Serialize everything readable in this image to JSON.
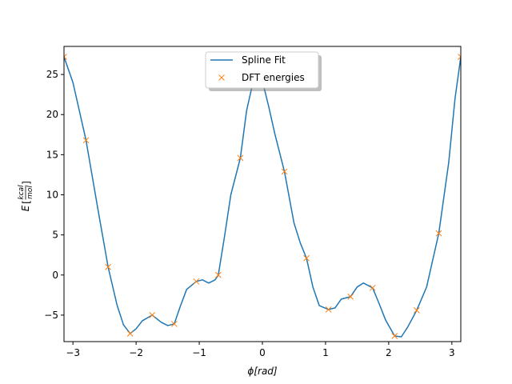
{
  "chart_data": {
    "type": "line",
    "title": "",
    "xlabel": "ϕ[rad]",
    "ylabel": "E[kcal/mol]",
    "ylabel_parts": {
      "symbol": "E",
      "num": "kcal",
      "den": "mol"
    },
    "xlim": [
      -3.1416,
      3.1416
    ],
    "ylim": [
      -8.3,
      28.5
    ],
    "xticks": [
      -3,
      -2,
      -1,
      0,
      1,
      2,
      3
    ],
    "yticks": [
      -5,
      0,
      5,
      10,
      15,
      20,
      25
    ],
    "grid": false,
    "legend_position": "top-center",
    "series": [
      {
        "name": "Spline Fit",
        "kind": "line",
        "color": "#1f77b4",
        "x": [
          -3.1416,
          -3.0,
          -2.793,
          -2.6,
          -2.443,
          -2.3,
          -2.2,
          -2.094,
          -2.0,
          -1.9,
          -1.745,
          -1.6,
          -1.5,
          -1.396,
          -1.3,
          -1.2,
          -1.047,
          -0.95,
          -0.85,
          -0.75,
          -0.698,
          -0.6,
          -0.5,
          -0.349,
          -0.25,
          -0.15,
          -0.05,
          0.0,
          0.1,
          0.2,
          0.349,
          0.5,
          0.6,
          0.698,
          0.8,
          0.9,
          1.047,
          1.15,
          1.25,
          1.396,
          1.5,
          1.6,
          1.745,
          1.85,
          1.95,
          2.094,
          2.2,
          2.3,
          2.443,
          2.6,
          2.793,
          2.95,
          3.05,
          3.1416
        ],
        "y": [
          27.2,
          24.0,
          16.8,
          8.0,
          1.0,
          -3.8,
          -6.2,
          -7.3,
          -6.7,
          -5.7,
          -5.0,
          -5.9,
          -6.3,
          -6.1,
          -3.9,
          -1.8,
          -0.8,
          -0.6,
          -1.0,
          -0.6,
          0.0,
          4.8,
          10.0,
          14.6,
          20.5,
          24.0,
          25.0,
          24.2,
          21.0,
          17.5,
          12.9,
          6.5,
          4.0,
          2.1,
          -1.5,
          -3.8,
          -4.3,
          -4.1,
          -3.0,
          -2.7,
          -1.5,
          -1.0,
          -1.6,
          -3.6,
          -5.6,
          -7.6,
          -7.7,
          -6.5,
          -4.4,
          -1.5,
          5.2,
          14.0,
          22.0,
          27.2
        ]
      },
      {
        "name": "DFT energies",
        "kind": "marker",
        "marker": "x",
        "color": "#ff7f0e",
        "x": [
          -3.1416,
          -2.793,
          -2.443,
          -2.094,
          -1.745,
          -1.396,
          -1.047,
          -0.698,
          -0.349,
          0.349,
          0.698,
          1.047,
          1.396,
          1.745,
          2.094,
          2.443,
          2.793,
          3.1416
        ],
        "y": [
          27.2,
          16.8,
          1.0,
          -7.3,
          -5.0,
          -6.1,
          -0.8,
          0.0,
          14.6,
          12.9,
          2.1,
          -4.3,
          -2.7,
          -1.6,
          -7.6,
          -4.4,
          5.2,
          27.2
        ]
      }
    ]
  }
}
